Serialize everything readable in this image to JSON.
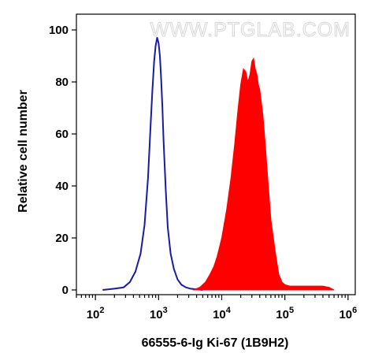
{
  "chart_data": {
    "type": "area",
    "title": "",
    "xlabel": "66555-6-Ig Ki-67 (1B9H2)",
    "ylabel": "Relative cell number",
    "x_scale": "log",
    "xlim": [
      50,
      1300000
    ],
    "ylim": [
      0,
      100
    ],
    "x_ticks": [
      {
        "value": 100,
        "base": "10",
        "exp": "2"
      },
      {
        "value": 1000,
        "base": "10",
        "exp": "3"
      },
      {
        "value": 10000,
        "base": "10",
        "exp": "4"
      },
      {
        "value": 100000,
        "base": "10",
        "exp": "5"
      },
      {
        "value": 1000000,
        "base": "10",
        "exp": "6"
      }
    ],
    "y_ticks": [
      "0",
      "20",
      "40",
      "60",
      "80",
      "100"
    ],
    "grid": false,
    "legend": "none",
    "watermark": "WWW.PTGLAB.COM",
    "series": [
      {
        "style": "outline",
        "color": "#1a1aa8",
        "x": [
          130,
          200,
          280,
          350,
          430,
          520,
          600,
          680,
          750,
          800,
          850,
          900,
          950,
          1000,
          1050,
          1100,
          1150,
          1200,
          1300,
          1400,
          1550,
          1750,
          2000,
          2300,
          2700,
          3200,
          4000,
          5000
        ],
        "y": [
          0,
          0.5,
          1,
          3,
          7,
          14,
          25,
          43,
          64,
          77,
          88,
          94,
          97,
          95,
          90,
          81,
          70,
          57,
          38,
          24,
          14,
          8,
          4,
          2,
          1,
          0.5,
          0.2,
          0
        ]
      },
      {
        "style": "filled",
        "color": "#ff0000",
        "x": [
          3500,
          4500,
          5500,
          6500,
          7500,
          8500,
          10000,
          12000,
          14000,
          16000,
          18000,
          20000,
          22000,
          24000,
          26000,
          28000,
          30000,
          32000,
          34000,
          36000,
          38000,
          40000,
          45000,
          50000,
          55000,
          60000,
          70000,
          80000,
          90000,
          100000,
          120000,
          150000,
          200000,
          300000,
          400000,
          500000,
          600000
        ],
        "y": [
          0,
          1,
          3,
          6,
          9,
          13,
          20,
          31,
          43,
          56,
          69,
          79,
          85,
          84,
          80,
          83,
          88,
          89,
          85,
          83,
          79,
          77,
          67,
          53,
          39,
          27,
          15,
          6,
          3,
          2,
          1.5,
          1.5,
          1.5,
          1.5,
          1.5,
          1,
          0
        ]
      }
    ]
  }
}
